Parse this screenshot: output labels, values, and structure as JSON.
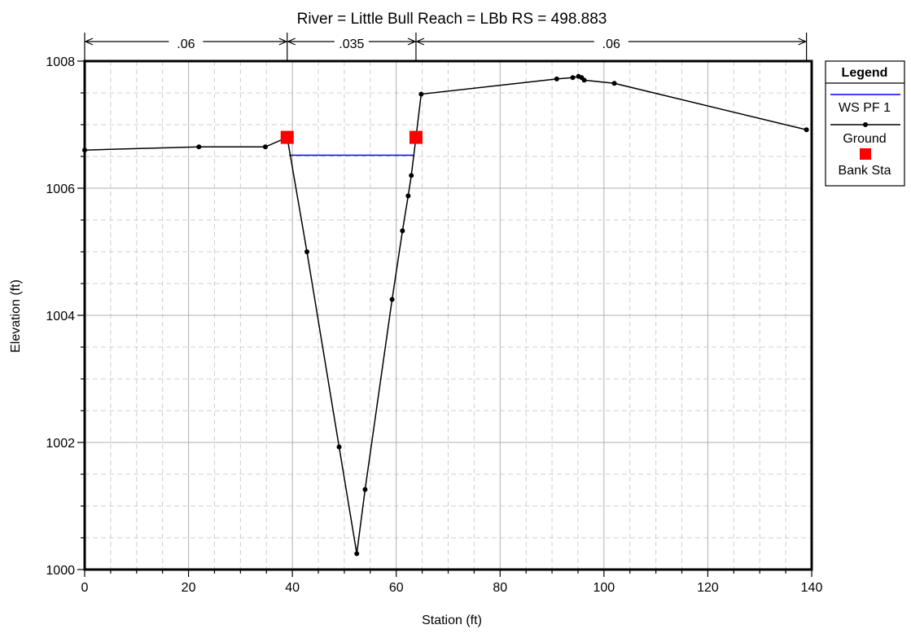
{
  "chart_data": {
    "type": "line",
    "title": "River = Little Bull   Reach = LBb      RS = 498.883",
    "xlabel": "Station (ft)",
    "ylabel": "Elevation (ft)",
    "xlim": [
      0,
      140
    ],
    "ylim": [
      1000,
      1008
    ],
    "x_major_ticks": [
      0,
      20,
      40,
      60,
      80,
      100,
      120,
      140
    ],
    "y_major_ticks": [
      1000,
      1002,
      1004,
      1006,
      1008
    ],
    "x_minor_step": 5,
    "y_minor_step": 0.5,
    "grid": true,
    "legend_placement": "right",
    "legend": {
      "title": "Legend",
      "entries": [
        {
          "name": "WS PF 1",
          "kind": "line",
          "color": "#0000ff"
        },
        {
          "name": "Ground",
          "kind": "line-marker",
          "color": "#000000"
        },
        {
          "name": "Bank Sta",
          "kind": "square",
          "color": "#ff0000"
        }
      ]
    },
    "manning_n": {
      "boundaries": [
        0,
        39,
        63.8,
        139
      ],
      "values": [
        ".06",
        ".035",
        ".06"
      ]
    },
    "series": [
      {
        "name": "Ground",
        "color": "#000000",
        "points": [
          [
            0,
            1006.6
          ],
          [
            22,
            1006.65
          ],
          [
            34.8,
            1006.65
          ],
          [
            39,
            1006.8
          ],
          [
            42.8,
            1005.0
          ],
          [
            49,
            1001.93
          ],
          [
            52.4,
            1000.25
          ],
          [
            54,
            1001.26
          ],
          [
            59.2,
            1004.25
          ],
          [
            61.2,
            1005.33
          ],
          [
            62.3,
            1005.88
          ],
          [
            62.9,
            1006.2
          ],
          [
            63.8,
            1006.8
          ],
          [
            64.8,
            1007.48
          ],
          [
            90.9,
            1007.72
          ],
          [
            94,
            1007.74
          ],
          [
            95.1,
            1007.76
          ],
          [
            95.7,
            1007.74
          ],
          [
            96.2,
            1007.7
          ],
          [
            102,
            1007.65
          ],
          [
            139,
            1006.92
          ]
        ]
      },
      {
        "name": "WS PF 1",
        "color": "#0000ff",
        "points": [
          [
            39.4,
            1006.52
          ],
          [
            63.5,
            1006.52
          ]
        ]
      },
      {
        "name": "Bank Sta",
        "color": "#ff0000",
        "points": [
          [
            39,
            1006.8
          ],
          [
            63.8,
            1006.8
          ]
        ]
      }
    ]
  }
}
